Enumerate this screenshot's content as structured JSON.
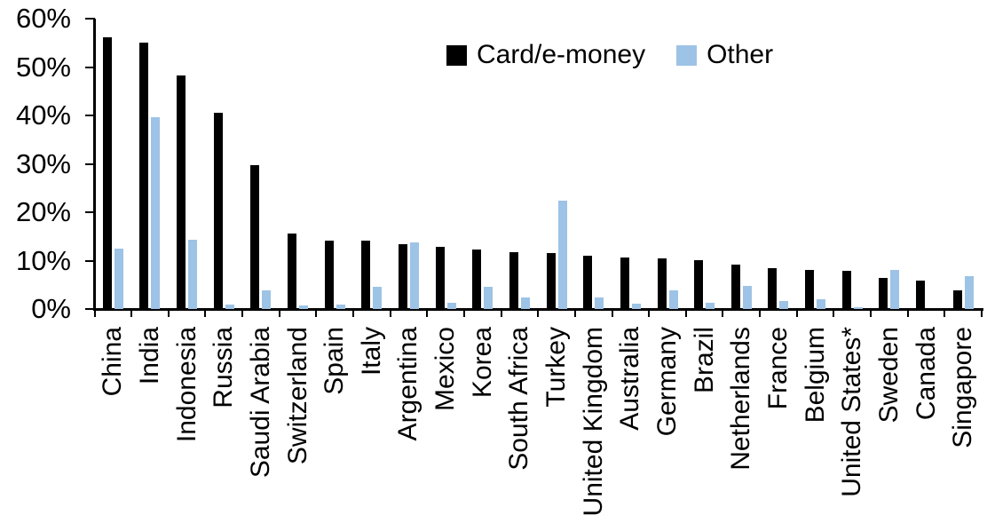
{
  "chart_data": {
    "type": "bar",
    "title": "",
    "xlabel": "",
    "ylabel": "",
    "ylim": [
      0,
      60
    ],
    "y_ticks": [
      "0%",
      "10%",
      "20%",
      "30%",
      "40%",
      "50%",
      "60%"
    ],
    "grid": "off",
    "legend_position": "top-center",
    "axis_color": "#000000",
    "categories": [
      "China",
      "India",
      "Indonesia",
      "Russia",
      "Saudi Arabia",
      "Switzerland",
      "Spain",
      "Italy",
      "Argentina",
      "Mexico",
      "Korea",
      "South Africa",
      "Turkey",
      "United Kingdom",
      "Australia",
      "Germany",
      "Brazil",
      "Netherlands",
      "France",
      "Belgium",
      "United States*",
      "Sweden",
      "Canada",
      "Singapore"
    ],
    "series": [
      {
        "name": "Card/e-money",
        "color": "#000000",
        "values": [
          56.2,
          55.0,
          48.2,
          40.5,
          29.8,
          15.6,
          14.2,
          14.1,
          13.4,
          12.9,
          12.3,
          11.7,
          11.5,
          11.0,
          10.7,
          10.5,
          10.1,
          9.2,
          8.5,
          8.0,
          7.8,
          6.5,
          5.8,
          3.9
        ]
      },
      {
        "name": "Other",
        "color": "#9DC3E6",
        "values": [
          12.4,
          39.7,
          14.4,
          1.0,
          3.8,
          0.8,
          1.0,
          4.6,
          13.8,
          1.3,
          4.6,
          2.3,
          22.4,
          2.4,
          1.1,
          3.9,
          1.2,
          4.8,
          1.6,
          2.0,
          0.3,
          8.1,
          0.0,
          6.7
        ]
      }
    ]
  }
}
